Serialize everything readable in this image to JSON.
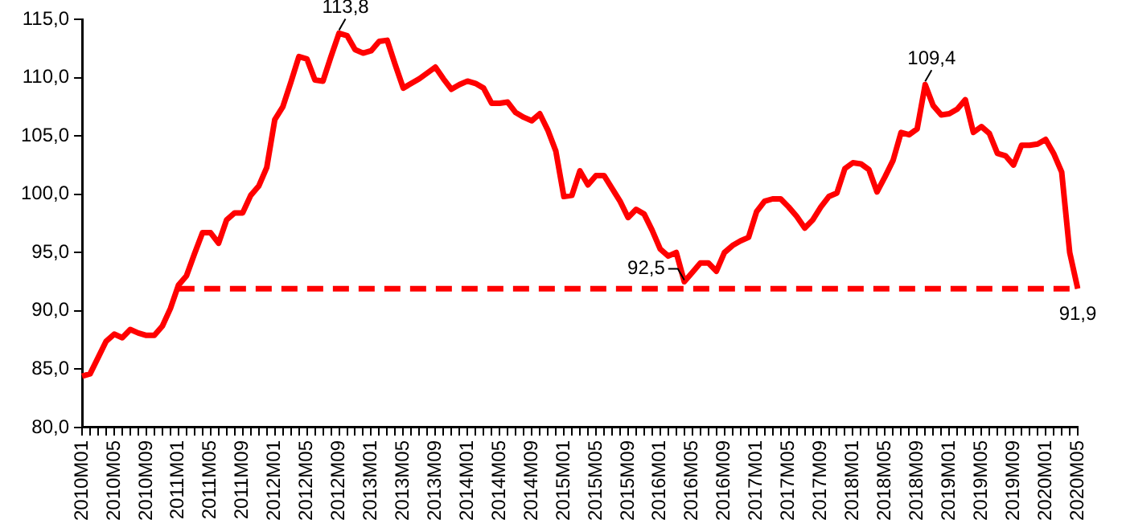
{
  "chart_data": {
    "type": "line",
    "categories": [
      "2010M01",
      null,
      null,
      null,
      "2010M05",
      null,
      null,
      null,
      "2010M09",
      null,
      null,
      null,
      "2011M01",
      null,
      null,
      null,
      "2011M05",
      null,
      null,
      null,
      "2011M09",
      null,
      null,
      null,
      "2012M01",
      null,
      null,
      null,
      "2012M05",
      null,
      null,
      null,
      "2012M09",
      null,
      null,
      null,
      "2013M01",
      null,
      null,
      null,
      "2013M05",
      null,
      null,
      null,
      "2013M09",
      null,
      null,
      null,
      "2014M01",
      null,
      null,
      null,
      "2014M05",
      null,
      null,
      null,
      "2014M09",
      null,
      null,
      null,
      "2015M01",
      null,
      null,
      null,
      "2015M05",
      null,
      null,
      null,
      "2015M09",
      null,
      null,
      null,
      "2016M01",
      null,
      null,
      null,
      "2016M05",
      null,
      null,
      null,
      "2016M09",
      null,
      null,
      null,
      "2017M01",
      null,
      null,
      null,
      "2017M05",
      null,
      null,
      null,
      "2017M09",
      null,
      null,
      null,
      "2018M01",
      null,
      null,
      null,
      "2018M05",
      null,
      null,
      null,
      "2018M09",
      null,
      null,
      null,
      "2019M01",
      null,
      null,
      null,
      "2019M05",
      null,
      null,
      null,
      "2019M09",
      null,
      null,
      null,
      "2020M01",
      null,
      null,
      null,
      "2020M05"
    ],
    "series": [
      {
        "color": "#ff0000",
        "line_style": "solid",
        "values": [
          84.4,
          84.6,
          86.0,
          87.4,
          88.0,
          87.7,
          88.4,
          88.1,
          87.9,
          87.9,
          88.7,
          90.2,
          92.2,
          93.0,
          94.9,
          96.7,
          96.7,
          95.8,
          97.8,
          98.4,
          98.4,
          99.9,
          100.7,
          102.3,
          106.4,
          107.5,
          109.6,
          111.8,
          111.6,
          109.8,
          109.7,
          111.8,
          113.8,
          113.6,
          112.4,
          112.1,
          112.3,
          113.1,
          113.2,
          111.1,
          109.1,
          109.5,
          109.9,
          110.4,
          110.9,
          109.9,
          109.0,
          109.4,
          109.7,
          109.5,
          109.1,
          107.8,
          107.8,
          107.9,
          107.0,
          106.6,
          106.3,
          106.9,
          105.5,
          103.7,
          99.8,
          99.9,
          102.0,
          100.8,
          101.6,
          101.6,
          100.5,
          99.4,
          98.0,
          98.7,
          98.3,
          96.9,
          95.3,
          94.7,
          95.0,
          92.5,
          93.3,
          94.1,
          94.1,
          93.4,
          95.0,
          95.6,
          96.0,
          96.3,
          98.5,
          99.4,
          99.6,
          99.6,
          98.9,
          98.1,
          97.1,
          97.8,
          98.9,
          99.8,
          100.1,
          102.2,
          102.7,
          102.6,
          102.1,
          100.2,
          101.5,
          102.9,
          105.3,
          105.1,
          105.6,
          109.4,
          107.6,
          106.8,
          106.9,
          107.3,
          108.1,
          105.3,
          105.8,
          105.2,
          103.5,
          103.3,
          102.5,
          104.2,
          104.2,
          104.3,
          104.7,
          103.5,
          101.9,
          95.0,
          91.9
        ],
        "value_labels": [
          null,
          null,
          null,
          null,
          null,
          null,
          null,
          null,
          null,
          null,
          null,
          null,
          null,
          null,
          null,
          null,
          null,
          null,
          null,
          null,
          null,
          null,
          null,
          null,
          null,
          null,
          null,
          null,
          null,
          null,
          null,
          null,
          "113,8",
          null,
          null,
          null,
          null,
          null,
          null,
          null,
          null,
          null,
          null,
          null,
          null,
          null,
          null,
          null,
          null,
          null,
          null,
          null,
          null,
          null,
          null,
          null,
          null,
          null,
          null,
          null,
          null,
          null,
          null,
          null,
          null,
          null,
          null,
          null,
          null,
          null,
          null,
          null,
          null,
          null,
          null,
          "92,5",
          null,
          null,
          null,
          null,
          null,
          null,
          null,
          null,
          null,
          null,
          null,
          null,
          null,
          null,
          null,
          null,
          null,
          null,
          null,
          null,
          null,
          null,
          null,
          null,
          null,
          null,
          null,
          null,
          null,
          "109,4",
          null,
          null,
          null,
          null,
          null,
          null,
          null,
          null,
          null,
          null,
          null,
          null,
          null,
          null,
          null,
          null,
          null,
          null,
          "91,9"
        ]
      },
      {
        "color": "#ff0000",
        "line_style": "dashed",
        "values": [
          null,
          null,
          null,
          null,
          null,
          null,
          null,
          null,
          null,
          null,
          null,
          null,
          91.9,
          91.9,
          91.9,
          91.9,
          91.9,
          91.9,
          91.9,
          91.9,
          91.9,
          91.9,
          91.9,
          91.9,
          91.9,
          91.9,
          91.9,
          91.9,
          91.9,
          91.9,
          91.9,
          91.9,
          91.9,
          91.9,
          91.9,
          91.9,
          91.9,
          91.9,
          91.9,
          91.9,
          91.9,
          91.9,
          91.9,
          91.9,
          91.9,
          91.9,
          91.9,
          91.9,
          91.9,
          91.9,
          91.9,
          91.9,
          91.9,
          91.9,
          91.9,
          91.9,
          91.9,
          91.9,
          91.9,
          91.9,
          91.9,
          91.9,
          91.9,
          91.9,
          91.9,
          91.9,
          91.9,
          91.9,
          91.9,
          91.9,
          91.9,
          91.9,
          91.9,
          91.9,
          91.9,
          91.9,
          91.9,
          91.9,
          91.9,
          91.9,
          91.9,
          91.9,
          91.9,
          91.9,
          91.9,
          91.9,
          91.9,
          91.9,
          91.9,
          91.9,
          91.9,
          91.9,
          91.9,
          91.9,
          91.9,
          91.9,
          91.9,
          91.9,
          91.9,
          91.9,
          91.9,
          91.9,
          91.9,
          91.9,
          91.9,
          91.9,
          91.9,
          91.9,
          91.9,
          91.9,
          91.9,
          91.9,
          91.9,
          91.9,
          91.9,
          91.9,
          91.9,
          91.9,
          91.9,
          91.9,
          91.9,
          91.9,
          91.9,
          91.9,
          91.9
        ]
      }
    ],
    "ylim": [
      80,
      115
    ],
    "yticks": [
      {
        "value": 80,
        "label": "80,0"
      },
      {
        "value": 85,
        "label": "85,0"
      },
      {
        "value": 90,
        "label": "90,0"
      },
      {
        "value": 95,
        "label": "95,0"
      },
      {
        "value": 100,
        "label": "100,0"
      },
      {
        "value": 105,
        "label": "105,0"
      },
      {
        "value": 110,
        "label": "110,0"
      },
      {
        "value": 115,
        "label": "115,0"
      }
    ],
    "grid": false,
    "legend": false,
    "marker": "none"
  }
}
